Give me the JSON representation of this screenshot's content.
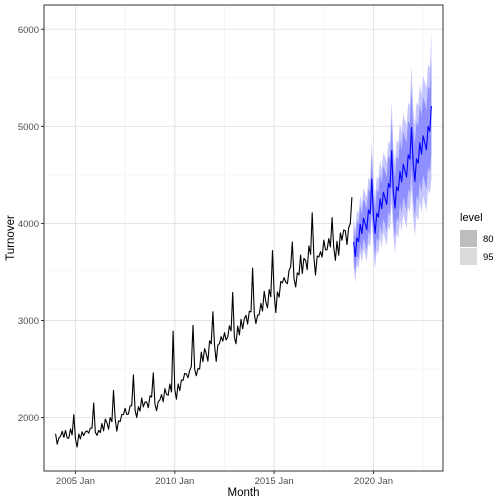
{
  "chart_data": {
    "type": "line",
    "xlabel": "Month",
    "ylabel": "Turnover",
    "x_ticks": [
      "2005 Jan",
      "2010 Jan",
      "2015 Jan",
      "2020 Jan"
    ],
    "y_ticks": [
      "2000",
      "3000",
      "4000",
      "5000",
      "6000"
    ],
    "xlim": [
      "2003 Jun",
      "2023 Jul"
    ],
    "ylim": [
      1450,
      6250
    ],
    "grid": true,
    "legend": {
      "title": "level",
      "position": "right",
      "entries": [
        "80",
        "95"
      ]
    },
    "colors": {
      "history": "#000000",
      "forecast": "#0000ff",
      "band80": "#8f8fff",
      "band95": "#c7c7ff",
      "legend80": "#bdbdbd",
      "legend95": "#dbdbdb"
    },
    "history": {
      "start": "2004 Jan",
      "anchors_yearly_jan": [
        [
          2004,
          1820
        ],
        [
          2005,
          1790
        ],
        [
          2006,
          1860
        ],
        [
          2007,
          1950
        ],
        [
          2008,
          2100
        ],
        [
          2009,
          2150
        ],
        [
          2010,
          2280
        ],
        [
          2011,
          2500
        ],
        [
          2012,
          2730
        ],
        [
          2013,
          2870
        ],
        [
          2014,
          3050
        ],
        [
          2015,
          3250
        ],
        [
          2016,
          3480
        ],
        [
          2017,
          3630
        ],
        [
          2018,
          3760
        ],
        [
          2019,
          3900
        ]
      ],
      "december_peaks": [
        [
          2004,
          2030
        ],
        [
          2005,
          2150
        ],
        [
          2006,
          2280
        ],
        [
          2007,
          2440
        ],
        [
          2008,
          2460
        ],
        [
          2009,
          2890
        ],
        [
          2010,
          2950
        ],
        [
          2011,
          3090
        ],
        [
          2012,
          3290
        ],
        [
          2013,
          3540
        ],
        [
          2014,
          3720
        ],
        [
          2015,
          3810
        ],
        [
          2016,
          4110
        ],
        [
          2017,
          4060
        ],
        [
          2018,
          4270
        ]
      ]
    },
    "forecast": {
      "start": "2019 Jan",
      "end": "2022 Dec",
      "anchors_yearly_jan": [
        [
          2019,
          3810
        ],
        [
          2020,
          4060
        ],
        [
          2021,
          4330
        ],
        [
          2022,
          4620
        ],
        [
          2023,
          4900
        ]
      ],
      "december_peaks": [
        [
          2019,
          4460
        ],
        [
          2020,
          4750
        ],
        [
          2021,
          4990
        ],
        [
          2022,
          5210
        ]
      ],
      "pi80_halfwidth_start": 170,
      "pi80_halfwidth_end": 430,
      "pi95_halfwidth_start": 260,
      "pi95_halfwidth_end": 660
    }
  }
}
